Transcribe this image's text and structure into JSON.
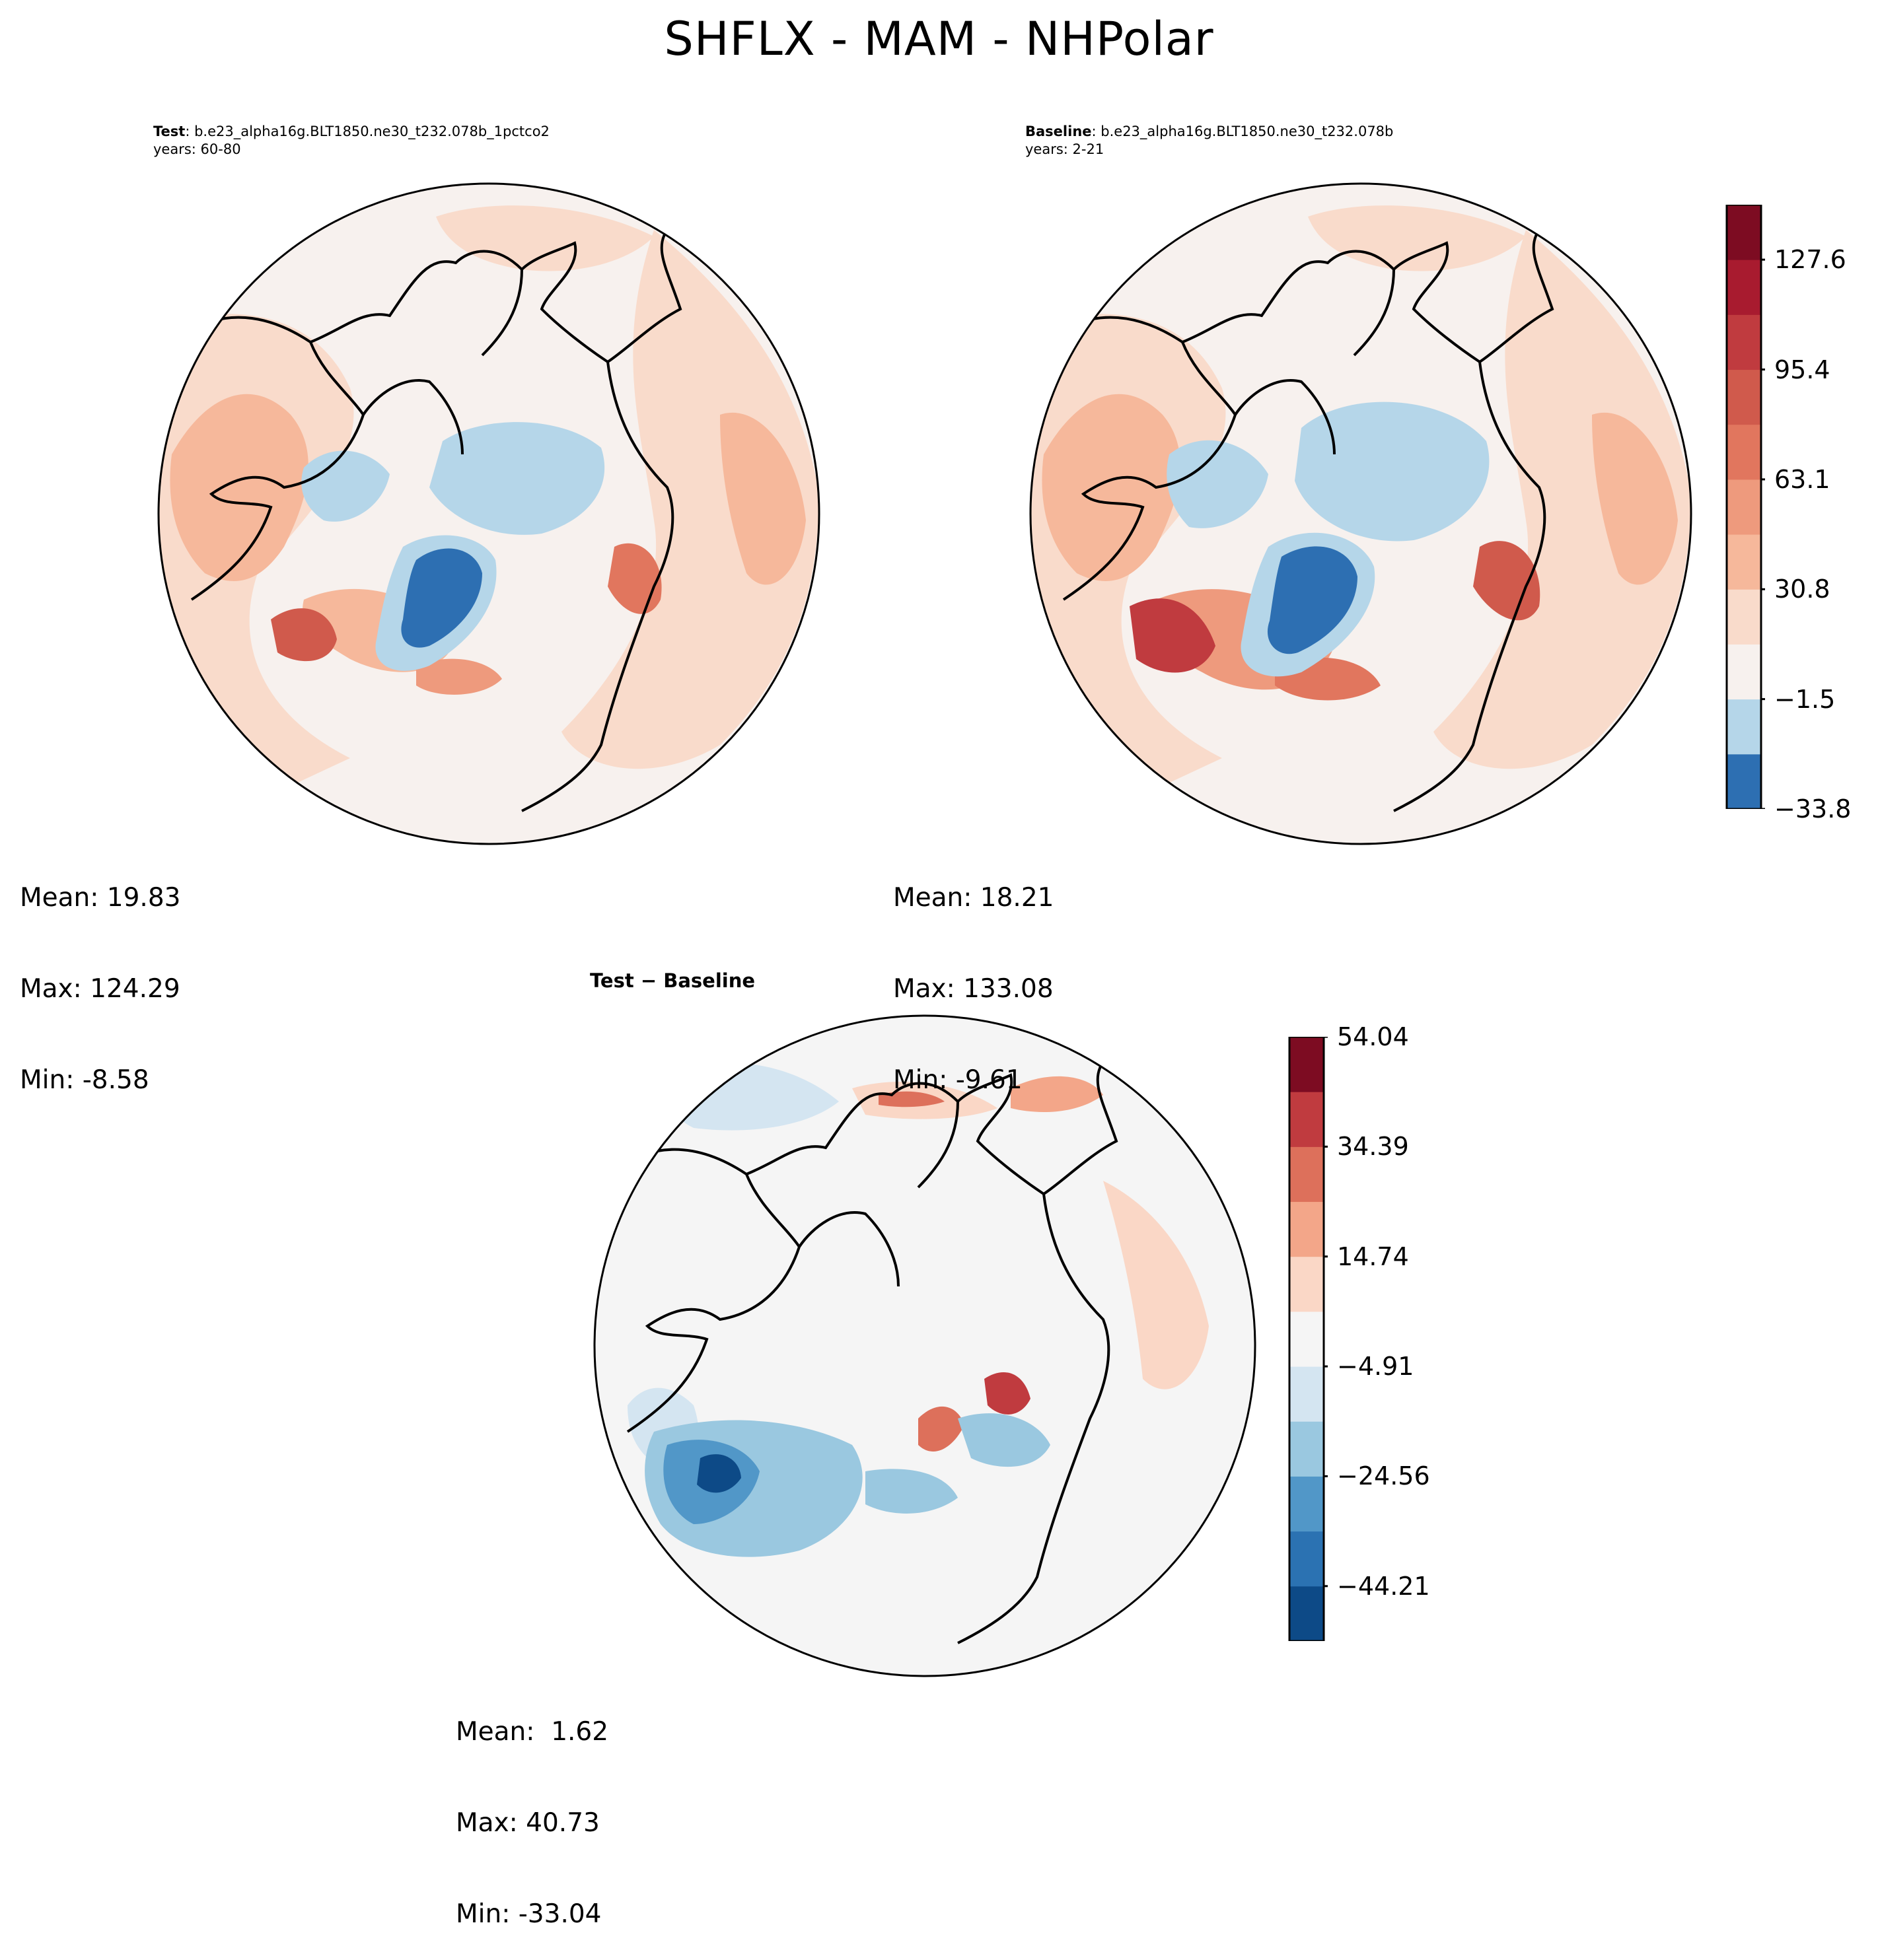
{
  "title": "SHFLX - MAM - NHPolar",
  "panels": {
    "test": {
      "label": "Test",
      "case": ": b.e23_alpha16g.BLT1850.ne30_t232.078b_1pctco2",
      "years": "years: 60-80",
      "stats": {
        "mean": "Mean: 19.83",
        "max": "Max: 124.29",
        "min": "Min: -8.58"
      }
    },
    "baseline": {
      "label": "Baseline",
      "case": ": b.e23_alpha16g.BLT1850.ne30_t232.078b",
      "years": "years: 2-21",
      "stats": {
        "mean": "Mean: 18.21",
        "max": "Max: 133.08",
        "min": "Min: -9.61"
      }
    },
    "diff": {
      "label": "Test − Baseline",
      "stats": {
        "mean": "Mean:  1.62",
        "max": "Max: 40.73",
        "min": "Min: -33.04"
      }
    }
  },
  "chart_data": [
    {
      "type": "heatmap",
      "name": "Test",
      "projection": "North polar stereographic",
      "shared_colorbar": "main"
    },
    {
      "type": "heatmap",
      "name": "Baseline",
      "projection": "North polar stereographic",
      "shared_colorbar": "main"
    },
    {
      "type": "heatmap",
      "name": "Test − Baseline",
      "projection": "North polar stereographic",
      "colorbar": "diff"
    }
  ],
  "colorbars": {
    "main": {
      "levels": [
        -33.8,
        -17.7,
        -1.5,
        14.6,
        30.8,
        46.9,
        63.1,
        79.2,
        95.4,
        111.5,
        127.6,
        143.8
      ],
      "tick_labels": [
        "127.6",
        "95.4",
        "63.1",
        "30.8",
        "−1.5",
        "−33.8"
      ],
      "colors": [
        "#2d6fb2",
        "#b5d6e9",
        "#f7f1ee",
        "#f9dbcb",
        "#f6b89b",
        "#ee9a7d",
        "#e1765e",
        "#d05a4c",
        "#c03b3f",
        "#a81b2f",
        "#7d0c22"
      ]
    },
    "diff": {
      "levels": [
        -53.9,
        -44.21,
        -34.4,
        -24.56,
        -14.7,
        -4.91,
        4.9,
        14.74,
        24.6,
        34.39,
        44.2,
        54.04
      ],
      "tick_labels": [
        "54.04",
        "34.39",
        "14.74",
        "−4.91",
        "−24.56",
        "−44.21"
      ],
      "colors": [
        "#0d4a87",
        "#2b72b2",
        "#5197c8",
        "#9ac8e0",
        "#d4e5f1",
        "#f5f5f5",
        "#fad7c6",
        "#f3a689",
        "#dd705b",
        "#c03b3f",
        "#7d0c22"
      ]
    }
  }
}
